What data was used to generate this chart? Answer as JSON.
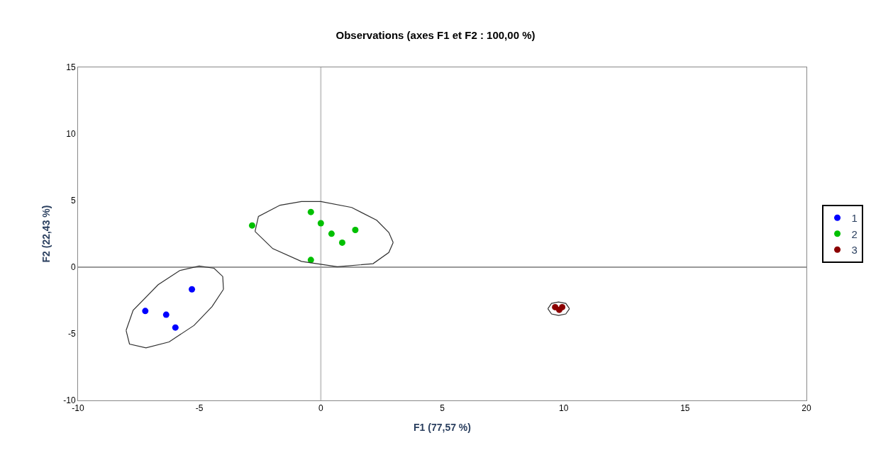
{
  "chart_data": {
    "type": "scatter",
    "title": "Observations (axes F1 et F2 : 100,00 %)",
    "xlabel": "F1 (77,57 %)",
    "ylabel": "F2 (22,43 %)",
    "xlim": [
      -10,
      20
    ],
    "xticks": [
      -10,
      -5,
      0,
      5,
      10,
      15,
      20
    ],
    "ylim": [
      -10,
      15
    ],
    "yticks": [
      -10,
      -5,
      0,
      5,
      10,
      15
    ],
    "grid": false,
    "legend": "right",
    "marker": "circle",
    "ref_lines": [
      {
        "axis": "x",
        "value": 0,
        "color": "#c8c8c8"
      },
      {
        "axis": "y",
        "value": 0,
        "color": "#999999"
      }
    ],
    "series": [
      {
        "name": "1",
        "color": "#0000ff",
        "x": [
          -5.31,
          -7.23,
          -6.37,
          -5.99
        ],
        "values": [
          -1.66,
          -3.29,
          -3.57,
          -4.53
        ]
      },
      {
        "name": "2",
        "color": "#00c000",
        "x": [
          -2.83,
          -0.41,
          0.0,
          0.44,
          0.88,
          1.42,
          -0.41
        ],
        "values": [
          3.13,
          4.14,
          3.3,
          2.51,
          1.84,
          2.79,
          0.54
        ]
      },
      {
        "name": "3",
        "color": "#8b0000",
        "x": [
          9.65,
          9.82,
          9.94
        ],
        "values": [
          -3.0,
          -3.2,
          -3.0
        ]
      },
      {
        "type": "line",
        "marker": "none",
        "color": "#303030",
        "x": [
          -8.02,
          -7.73,
          -6.7,
          -5.81,
          -5.01,
          -4.4,
          -4.04,
          -4.01
        ],
        "values": [
          -4.75,
          -3.23,
          -1.32,
          -0.25,
          0.09,
          -0.08,
          -0.7,
          -1.66
        ]
      },
      {
        "type": "line",
        "marker": "none",
        "color": "#303030",
        "x": [
          -8.02,
          -7.88,
          -7.2,
          -6.25,
          -5.22,
          -4.48,
          -4.01
        ],
        "values": [
          -4.75,
          -5.77,
          -6.06,
          -5.61,
          -4.37,
          -2.96,
          -1.66
        ]
      },
      {
        "type": "line",
        "marker": "none",
        "color": "#303030",
        "x": [
          -2.71,
          -2.57,
          -1.68,
          -0.8,
          0,
          1.27,
          2.3,
          2.8,
          2.98
        ],
        "values": [
          2.68,
          3.81,
          4.65,
          4.93,
          4.93,
          4.48,
          3.52,
          2.6,
          1.85
        ]
      },
      {
        "type": "line",
        "marker": "none",
        "color": "#303030",
        "x": [
          -2.71,
          -1.98,
          -0.8,
          0.68,
          2.15,
          2.8,
          2.98
        ],
        "values": [
          2.68,
          1.39,
          0.43,
          0.03,
          0.26,
          1.1,
          1.85
        ]
      },
      {
        "type": "line",
        "marker": "none",
        "color": "#303030",
        "x": [
          9.35,
          9.5,
          9.79,
          10.09,
          10.24
        ],
        "values": [
          -3.12,
          -2.72,
          -2.61,
          -2.72,
          -3.12
        ]
      },
      {
        "type": "line",
        "marker": "none",
        "color": "#303030",
        "x": [
          9.35,
          9.5,
          9.79,
          10.09,
          10.24
        ],
        "values": [
          -3.12,
          -3.51,
          -3.62,
          -3.51,
          -3.12
        ]
      }
    ]
  }
}
